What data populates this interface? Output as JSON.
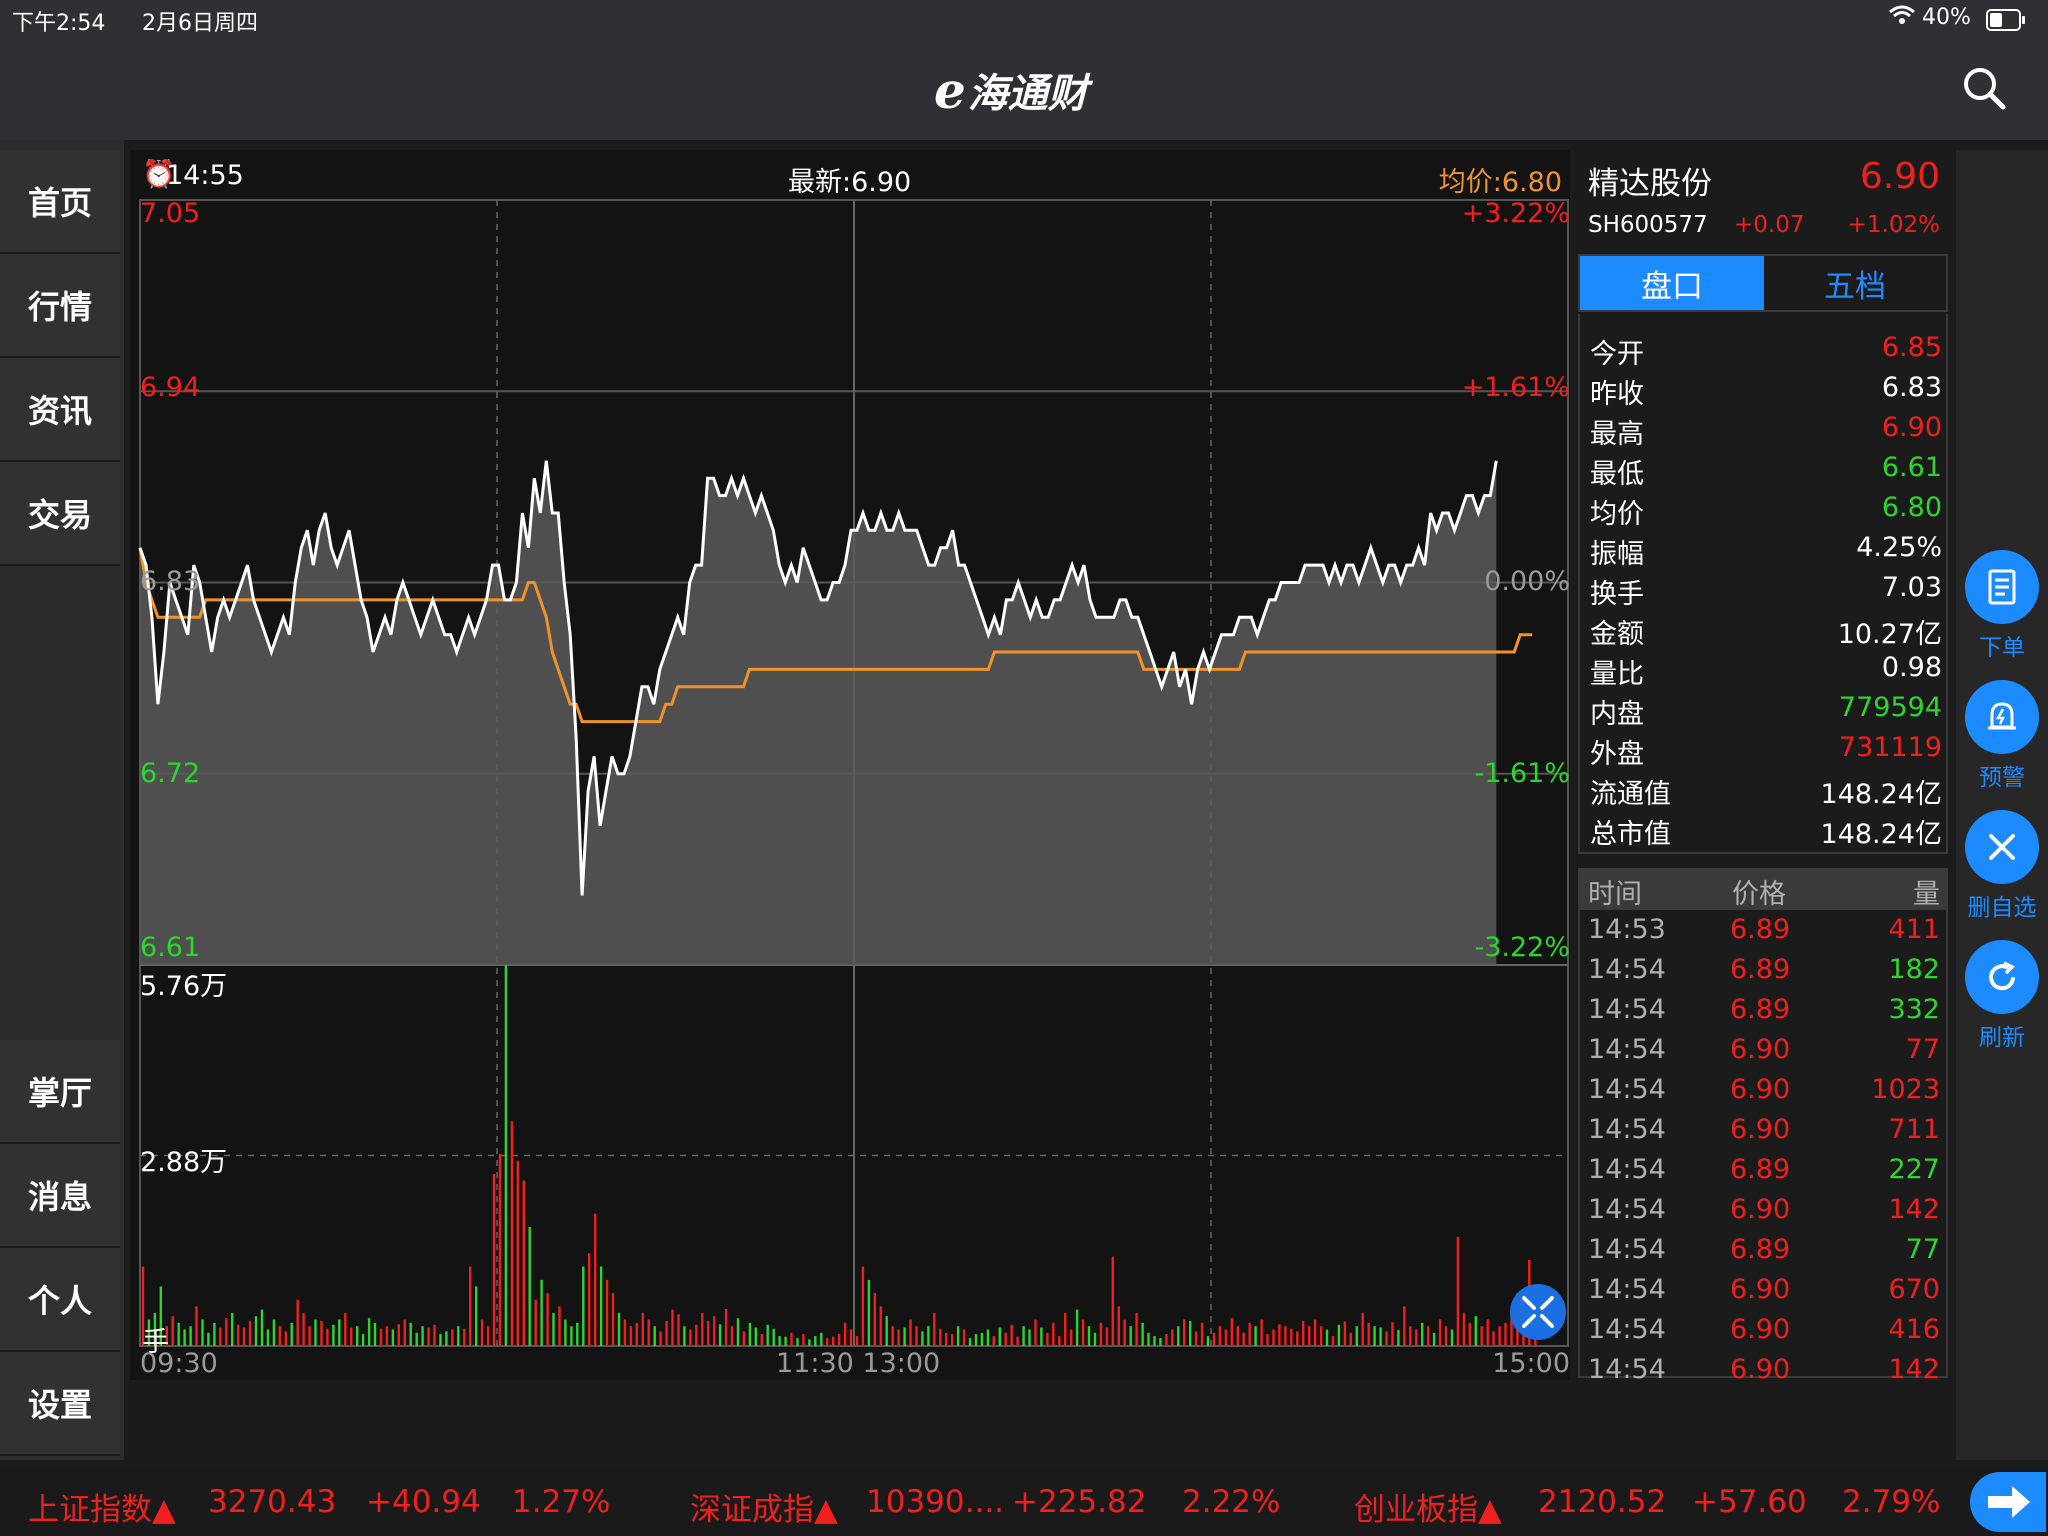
{
  "status": {
    "time": "下午2:54",
    "date": "2月6日周四",
    "battery": "40%"
  },
  "app": {
    "logo_e": "e",
    "logo_text": "海通财"
  },
  "sidebar": {
    "items": [
      {
        "label": "首页"
      },
      {
        "label": "行情"
      },
      {
        "label": "资讯"
      },
      {
        "label": "交易"
      },
      {
        "label": "掌厅"
      },
      {
        "label": "消息"
      },
      {
        "label": "个人"
      },
      {
        "label": "设置"
      }
    ]
  },
  "chart_header": {
    "clock": "14:55",
    "latest": "最新:6.90",
    "avg": "均价:6.80"
  },
  "chart_labels": {
    "price_top": "7.05",
    "pct_top": "+3.22%",
    "price_2": "6.94",
    "pct_2": "+1.61%",
    "price_mid": "6.83",
    "pct_mid": "0.00%",
    "price_4": "6.72",
    "pct_4": "-1.61%",
    "price_low": "6.61",
    "pct_low": "-3.22%",
    "vol_top": "5.76万",
    "vol_mid": "2.88万",
    "vol_unit": "手",
    "time_start": "09:30",
    "time_mid": "11:30 13:00",
    "time_end": "15:00"
  },
  "chart_data": {
    "type": "line",
    "title": "",
    "ylim": [
      6.61,
      7.05
    ],
    "prev_close": 6.83,
    "series": [
      {
        "values": [
          6.85,
          6.84,
          6.81,
          6.76,
          6.79,
          6.83,
          6.82,
          6.81,
          6.8,
          6.84,
          6.83,
          6.81,
          6.79,
          6.81,
          6.82,
          6.81,
          6.82,
          6.83,
          6.84,
          6.82,
          6.81,
          6.8,
          6.79,
          6.8,
          6.81,
          6.8,
          6.83,
          6.85,
          6.86,
          6.84,
          6.86,
          6.87,
          6.85,
          6.84,
          6.85,
          6.86,
          6.84,
          6.82,
          6.81,
          6.79,
          6.8,
          6.81,
          6.8,
          6.82,
          6.83,
          6.82,
          6.81,
          6.8,
          6.81,
          6.82,
          6.81,
          6.8,
          6.8,
          6.79,
          6.8,
          6.81,
          6.8,
          6.81,
          6.82,
          6.84,
          6.84,
          6.82,
          6.82,
          6.83,
          6.87,
          6.85,
          6.89,
          6.87,
          6.9,
          6.87,
          6.87,
          6.83,
          6.8,
          6.74,
          6.65,
          6.71,
          6.73,
          6.69,
          6.71,
          6.73,
          6.72,
          6.72,
          6.73,
          6.75,
          6.77,
          6.77,
          6.76,
          6.78,
          6.79,
          6.8,
          6.81,
          6.8,
          6.83,
          6.84,
          6.84,
          6.89,
          6.89,
          6.88,
          6.88,
          6.89,
          6.88,
          6.89,
          6.88,
          6.87,
          6.88,
          6.87,
          6.86,
          6.84,
          6.83,
          6.84,
          6.83,
          6.85,
          6.84,
          6.83,
          6.82,
          6.82,
          6.83,
          6.83,
          6.84,
          6.86,
          6.86,
          6.87,
          6.86,
          6.86,
          6.87,
          6.86,
          6.86,
          6.87,
          6.86,
          6.86,
          6.86,
          6.85,
          6.84,
          6.84,
          6.85,
          6.85,
          6.86,
          6.84,
          6.84,
          6.83,
          6.82,
          6.81,
          6.8,
          6.81,
          6.8,
          6.82,
          6.82,
          6.83,
          6.82,
          6.81,
          6.82,
          6.81,
          6.81,
          6.82,
          6.82,
          6.83,
          6.84,
          6.83,
          6.84,
          6.82,
          6.81,
          6.81,
          6.81,
          6.81,
          6.82,
          6.82,
          6.81,
          6.81,
          6.8,
          6.79,
          6.78,
          6.77,
          6.78,
          6.79,
          6.77,
          6.78,
          6.76,
          6.78,
          6.79,
          6.78,
          6.79,
          6.8,
          6.8,
          6.8,
          6.81,
          6.81,
          6.81,
          6.8,
          6.81,
          6.82,
          6.82,
          6.83,
          6.83,
          6.83,
          6.83,
          6.84,
          6.84,
          6.84,
          6.84,
          6.83,
          6.84,
          6.83,
          6.84,
          6.84,
          6.83,
          6.84,
          6.85,
          6.84,
          6.83,
          6.84,
          6.84,
          6.83,
          6.84,
          6.84,
          6.85,
          6.84,
          6.87,
          6.86,
          6.87,
          6.87,
          6.86,
          6.87,
          6.88,
          6.88,
          6.87,
          6.88,
          6.88,
          6.9
        ]
      },
      {
        "values": [
          6.85,
          6.83,
          6.82,
          6.81,
          6.81,
          6.81,
          6.81,
          6.81,
          6.81,
          6.81,
          6.81,
          6.82,
          6.82,
          6.82,
          6.82,
          6.82,
          6.82,
          6.82,
          6.82,
          6.82,
          6.82,
          6.82,
          6.82,
          6.82,
          6.82,
          6.82,
          6.82,
          6.82,
          6.82,
          6.82,
          6.82,
          6.82,
          6.82,
          6.82,
          6.82,
          6.82,
          6.82,
          6.82,
          6.82,
          6.82,
          6.82,
          6.82,
          6.82,
          6.82,
          6.82,
          6.82,
          6.82,
          6.82,
          6.82,
          6.82,
          6.82,
          6.82,
          6.82,
          6.82,
          6.82,
          6.82,
          6.82,
          6.82,
          6.82,
          6.82,
          6.82,
          6.82,
          6.82,
          6.82,
          6.82,
          6.83,
          6.83,
          6.82,
          6.81,
          6.79,
          6.78,
          6.77,
          6.76,
          6.76,
          6.75,
          6.75,
          6.75,
          6.75,
          6.75,
          6.75,
          6.75,
          6.75,
          6.75,
          6.75,
          6.75,
          6.75,
          6.75,
          6.75,
          6.76,
          6.76,
          6.77,
          6.77,
          6.77,
          6.77,
          6.77,
          6.77,
          6.77,
          6.77,
          6.77,
          6.77,
          6.77,
          6.77,
          6.78,
          6.78,
          6.78,
          6.78,
          6.78,
          6.78,
          6.78,
          6.78,
          6.78,
          6.78,
          6.78,
          6.78,
          6.78,
          6.78,
          6.78,
          6.78,
          6.78,
          6.78,
          6.78,
          6.78,
          6.78,
          6.78,
          6.78,
          6.78,
          6.78,
          6.78,
          6.78,
          6.78,
          6.78,
          6.78,
          6.78,
          6.78,
          6.78,
          6.78,
          6.78,
          6.78,
          6.78,
          6.78,
          6.78,
          6.78,
          6.78,
          6.79,
          6.79,
          6.79,
          6.79,
          6.79,
          6.79,
          6.79,
          6.79,
          6.79,
          6.79,
          6.79,
          6.79,
          6.79,
          6.79,
          6.79,
          6.79,
          6.79,
          6.79,
          6.79,
          6.79,
          6.79,
          6.79,
          6.79,
          6.79,
          6.79,
          6.78,
          6.78,
          6.78,
          6.78,
          6.78,
          6.78,
          6.78,
          6.78,
          6.78,
          6.78,
          6.78,
          6.78,
          6.78,
          6.78,
          6.78,
          6.78,
          6.78,
          6.79,
          6.79,
          6.79,
          6.79,
          6.79,
          6.79,
          6.79,
          6.79,
          6.79,
          6.79,
          6.79,
          6.79,
          6.79,
          6.79,
          6.79,
          6.79,
          6.79,
          6.79,
          6.79,
          6.79,
          6.79,
          6.79,
          6.79,
          6.79,
          6.79,
          6.79,
          6.79,
          6.79,
          6.79,
          6.79,
          6.79,
          6.79,
          6.79,
          6.79,
          6.79,
          6.79,
          6.79,
          6.79,
          6.79,
          6.79,
          6.79,
          6.79,
          6.79,
          6.79,
          6.79,
          6.79,
          6.8,
          6.8,
          6.8
        ]
      }
    ],
    "volume": {
      "ylim": [
        0,
        57600
      ],
      "values": [
        12000,
        4000,
        5000,
        9000,
        3000,
        4500,
        3500,
        2500,
        3000,
        6000,
        4000,
        2000,
        3500,
        2800,
        4200,
        5000,
        3200,
        2800,
        3800,
        4500,
        5500,
        2500,
        4000,
        3000,
        2200,
        3500,
        7000,
        5000,
        3000,
        4000,
        3800,
        2600,
        3200,
        4000,
        5000,
        2800,
        3000,
        1800,
        4200,
        3500,
        2600,
        3000,
        2500,
        3300,
        4000,
        3500,
        2000,
        3000,
        2800,
        3200,
        1800,
        2200,
        2500,
        3000,
        2600,
        12000,
        9000,
        4000,
        3000,
        26000,
        29000,
        57600,
        34000,
        28000,
        25000,
        18000,
        7000,
        10000,
        8000,
        5000,
        6000,
        4000,
        3000,
        3500,
        12000,
        14000,
        20000,
        12000,
        10000,
        8000,
        5000,
        4000,
        3000,
        3500,
        5000,
        4000,
        3000,
        2200,
        3800,
        5500,
        4800,
        3000,
        2500,
        3200,
        5000,
        3800,
        4500,
        3300,
        5600,
        3000,
        4200,
        2200,
        3500,
        2800,
        1800,
        3200,
        2600,
        1500,
        1400,
        2000,
        1200,
        1800,
        1000,
        1500,
        2000,
        1200,
        1400,
        1800,
        3500,
        2500,
        1500,
        12000,
        10000,
        8000,
        6000,
        4500,
        3000,
        2500,
        2800,
        4000,
        3000,
        2200,
        3000,
        5000,
        2600,
        2000,
        1800,
        3000,
        2500,
        1200,
        1800,
        2000,
        2500,
        1500,
        2800,
        2000,
        3200,
        1400,
        3000,
        2500,
        4000,
        2800,
        2000,
        3500,
        1500,
        5000,
        2500,
        5500,
        4000,
        3000,
        2000,
        3500,
        2800,
        13500,
        6000,
        4000,
        3000,
        5000,
        3500,
        2000,
        1500,
        1200,
        1800,
        2500,
        3000,
        4000,
        3800,
        2200,
        3500,
        1500,
        2000,
        3000,
        2500,
        4200,
        3000,
        2000,
        3500,
        3000,
        4000,
        1800,
        2500,
        3300,
        3000,
        2600,
        2200,
        3800,
        3000,
        4000,
        3000,
        2500,
        1500,
        3200,
        3700,
        2000,
        3000,
        5000,
        3500,
        3000,
        2800,
        2200,
        3600,
        2400,
        6000,
        3000,
        2500,
        3500,
        3000,
        2000,
        4000,
        3000,
        2500,
        16500,
        5000,
        3500,
        4500,
        3000,
        4000,
        2200,
        3000,
        3500,
        5000,
        8000,
        4000,
        13000,
        4000
      ]
    }
  },
  "quote": {
    "name": "精达股份",
    "price": "6.90",
    "code": "SH600577",
    "change": "+0.07",
    "change_pct": "+1.02%",
    "tabs": [
      "盘口",
      "五档"
    ],
    "rows": [
      {
        "k": "今开",
        "v": "6.85",
        "c": "red"
      },
      {
        "k": "昨收",
        "v": "6.83",
        "c": "white"
      },
      {
        "k": "最高",
        "v": "6.90",
        "c": "red"
      },
      {
        "k": "最低",
        "v": "6.61",
        "c": "green"
      },
      {
        "k": "均价",
        "v": "6.80",
        "c": "green"
      },
      {
        "k": "振幅",
        "v": "4.25%",
        "c": "white"
      },
      {
        "k": "换手",
        "v": "7.03",
        "c": "white"
      },
      {
        "k": "金额",
        "v": "10.27亿",
        "c": "white"
      },
      {
        "k": "量比",
        "v": "0.98",
        "c": "white"
      },
      {
        "k": "内盘",
        "v": "779594",
        "c": "green"
      },
      {
        "k": "外盘",
        "v": "731119",
        "c": "red"
      },
      {
        "k": "流通值",
        "v": "148.24亿",
        "c": "white"
      },
      {
        "k": "总市值",
        "v": "148.24亿",
        "c": "white"
      }
    ],
    "ticks_header": {
      "time": "时间",
      "price": "价格",
      "vol": "量"
    },
    "ticks": [
      {
        "t": "14:53",
        "p": "6.89",
        "q": "411",
        "qc": "red"
      },
      {
        "t": "14:54",
        "p": "6.89",
        "q": "182",
        "qc": "green"
      },
      {
        "t": "14:54",
        "p": "6.89",
        "q": "332",
        "qc": "green"
      },
      {
        "t": "14:54",
        "p": "6.90",
        "q": "77",
        "qc": "red"
      },
      {
        "t": "14:54",
        "p": "6.90",
        "q": "1023",
        "qc": "red"
      },
      {
        "t": "14:54",
        "p": "6.90",
        "q": "711",
        "qc": "red"
      },
      {
        "t": "14:54",
        "p": "6.89",
        "q": "227",
        "qc": "green"
      },
      {
        "t": "14:54",
        "p": "6.90",
        "q": "142",
        "qc": "red"
      },
      {
        "t": "14:54",
        "p": "6.89",
        "q": "77",
        "qc": "green"
      },
      {
        "t": "14:54",
        "p": "6.90",
        "q": "670",
        "qc": "red"
      },
      {
        "t": "14:54",
        "p": "6.90",
        "q": "416",
        "qc": "red"
      },
      {
        "t": "14:54",
        "p": "6.90",
        "q": "142",
        "qc": "red"
      }
    ]
  },
  "actions": [
    {
      "label": "下单",
      "icon": "order-icon"
    },
    {
      "label": "预警",
      "icon": "alert-bell-icon"
    },
    {
      "label": "删自选",
      "icon": "close-icon"
    },
    {
      "label": "刷新",
      "icon": "refresh-icon"
    }
  ],
  "ticker": {
    "items": [
      {
        "name": "上证指数▲",
        "value": "3270.43",
        "change": "+40.94",
        "pct": "1.27%"
      },
      {
        "name": "深证成指▲",
        "value": "10390....",
        "change": "+225.82",
        "pct": "2.22%"
      },
      {
        "name": "创业板指▲",
        "value": "2120.52",
        "change": "+57.60",
        "pct": "2.79%"
      }
    ]
  },
  "colors": {
    "up": "#f0201e",
    "down": "#2ed52e",
    "avg_line": "#f0922c",
    "accent": "#1c8bff"
  }
}
